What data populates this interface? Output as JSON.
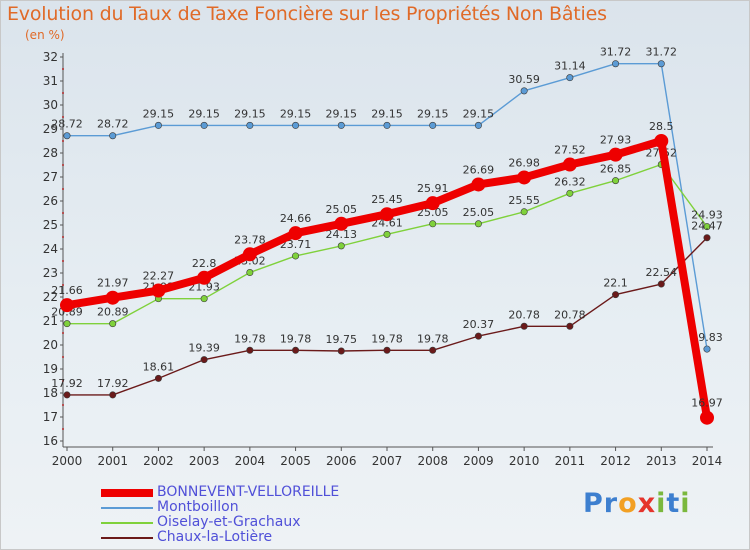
{
  "title": "Evolution du Taux de Taxe Foncière sur les Propriétés Non Bâties",
  "unit_label": "(en %)",
  "brand": {
    "text": "Proxiti",
    "letters": [
      {
        "ch": "P",
        "color": "#3d7fcf"
      },
      {
        "ch": "r",
        "color": "#3d7fcf"
      },
      {
        "ch": "o",
        "color": "#f2a023"
      },
      {
        "ch": "x",
        "color": "#e5342c"
      },
      {
        "ch": "i",
        "color": "#7ab83d"
      },
      {
        "ch": "t",
        "color": "#3d7fcf"
      },
      {
        "ch": "i",
        "color": "#7ab83d"
      }
    ]
  },
  "chart_data": {
    "type": "line",
    "x": [
      2000,
      2001,
      2002,
      2003,
      2004,
      2005,
      2006,
      2007,
      2008,
      2009,
      2010,
      2011,
      2012,
      2013,
      2014
    ],
    "ylim": [
      16,
      32
    ],
    "yticks": [
      16,
      17,
      18,
      19,
      20,
      21,
      22,
      23,
      24,
      25,
      26,
      27,
      28,
      29,
      30,
      31,
      32
    ],
    "grid": false,
    "legend_position": "bottom-left",
    "series": [
      {
        "name": "BONNEVENT-VELLOREILLE",
        "color": "#ee0000",
        "width": "bold",
        "values": [
          21.66,
          21.97,
          22.27,
          22.8,
          23.78,
          24.66,
          25.05,
          25.45,
          25.91,
          26.69,
          26.98,
          27.52,
          27.93,
          28.5,
          16.97
        ],
        "labels": [
          "21.66",
          "21.97",
          "22.27",
          "22.8",
          "23.78",
          "24.66",
          "25.05",
          "25.45",
          "25.91",
          "26.69",
          "26.98",
          "27.52",
          "27.93",
          "28.5",
          "16.97"
        ]
      },
      {
        "name": "Montboillon",
        "color": "#5b9bd5",
        "values": [
          28.72,
          28.72,
          29.15,
          29.15,
          29.15,
          29.15,
          29.15,
          29.15,
          29.15,
          29.15,
          30.59,
          31.14,
          31.72,
          31.72,
          19.83
        ],
        "labels": [
          "28.72",
          "28.72",
          "29.15",
          "29.15",
          "29.15",
          "29.15",
          "29.15",
          "29.15",
          "29.15",
          "29.15",
          "30.59",
          "31.14",
          "31.72",
          "31.72",
          "19.83"
        ]
      },
      {
        "name": "Oiselay-et-Grachaux",
        "color": "#7fd13b",
        "values": [
          20.89,
          20.89,
          21.93,
          21.93,
          23.02,
          23.71,
          24.13,
          24.61,
          25.05,
          25.05,
          25.55,
          26.32,
          26.85,
          27.52,
          24.93
        ],
        "labels": [
          "20.89",
          "20.89",
          "21.93",
          "21.93",
          "23.02",
          "23.71",
          "24.13",
          "24.61",
          "25.05",
          "25.05",
          "25.55",
          "26.32",
          "26.85",
          "27.52",
          "24.93"
        ]
      },
      {
        "name": "Chaux-la-Lotière",
        "color": "#6b1a1a",
        "values": [
          17.92,
          17.92,
          18.61,
          19.39,
          19.78,
          19.78,
          19.75,
          19.78,
          19.78,
          20.37,
          20.78,
          20.78,
          22.1,
          22.54,
          24.47
        ],
        "labels": [
          "17.92",
          "17.92",
          "18.61",
          "19.39",
          "19.78",
          "19.78",
          "19.75",
          "19.78",
          "19.78",
          "20.37",
          "20.78",
          "20.78",
          "22.1",
          "22.54",
          "24.47"
        ]
      }
    ]
  }
}
